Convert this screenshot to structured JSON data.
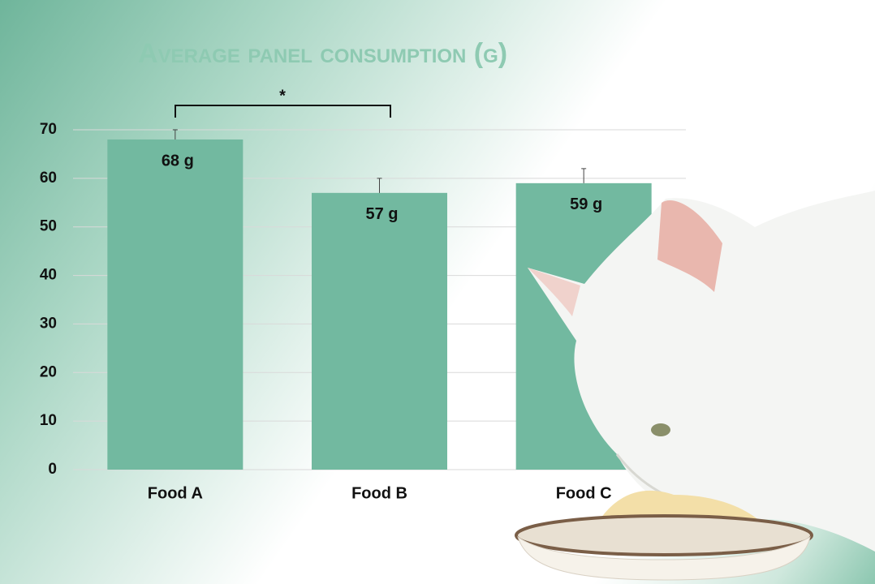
{
  "chart_data": {
    "type": "bar",
    "title": "Average panel consumption (g)",
    "categories": [
      "Food A",
      "Food B",
      "Food C"
    ],
    "values": [
      68,
      57,
      59
    ],
    "value_labels": [
      "68 g",
      "57 g",
      "59 g"
    ],
    "errors": [
      2,
      3,
      3
    ],
    "color": "#72b9a0",
    "ylim": [
      0,
      70
    ],
    "yticks": [
      0,
      10,
      20,
      30,
      40,
      50,
      60,
      70
    ],
    "grid": true,
    "annotation": "*"
  }
}
